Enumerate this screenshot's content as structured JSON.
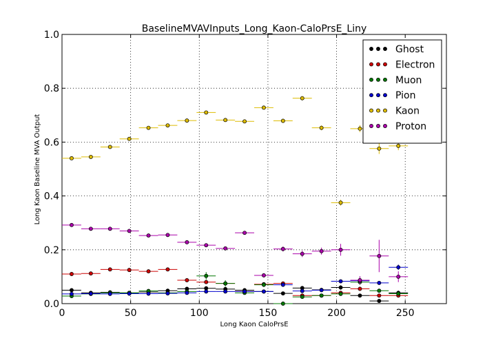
{
  "chart_data": {
    "type": "scatter",
    "title": "BaselineMVAVInputs_Long_Kaon-CaloPrsE_Liny",
    "xlabel": "Long Kaon CaloPrsE",
    "ylabel": "Long Kaon Baseline MVA Output",
    "xlim": [
      0,
      280
    ],
    "ylim": [
      0,
      1.0
    ],
    "x_ticks": [
      0,
      50,
      100,
      150,
      200,
      250
    ],
    "y_ticks": [
      0.0,
      0.2,
      0.4,
      0.6,
      0.8,
      1.0
    ],
    "x_tick_labels": [
      "0",
      "50",
      "100",
      "150",
      "200",
      "250"
    ],
    "y_tick_labels": [
      "0.0",
      "0.2",
      "0.4",
      "0.6",
      "0.8",
      "1.0"
    ],
    "grid": true,
    "legend_position": "top-right",
    "x_bin_half_width": 7,
    "series": [
      {
        "name": "Ghost",
        "color": "#000000",
        "x": [
          7,
          21,
          35,
          49,
          63,
          77,
          91,
          105,
          119,
          133,
          147,
          161,
          175,
          189,
          203,
          217,
          231,
          245
        ],
        "y": [
          0.05,
          0.04,
          0.042,
          0.04,
          0.043,
          0.048,
          0.055,
          0.057,
          0.054,
          0.05,
          0.045,
          0.038,
          0.058,
          0.051,
          0.06,
          0.03,
          0.01,
          0.04
        ],
        "yerr": [
          0.003,
          0.003,
          0.003,
          0.003,
          0.003,
          0.004,
          0.004,
          0.005,
          0.005,
          0.005,
          0.006,
          0.006,
          0.007,
          0.007,
          0.008,
          0.006,
          0.006,
          0.008
        ]
      },
      {
        "name": "Electron",
        "color": "#cc0000",
        "x": [
          7,
          21,
          35,
          49,
          63,
          77,
          91,
          105,
          119,
          133,
          147,
          161,
          175,
          189,
          203,
          217,
          231,
          245
        ],
        "y": [
          0.11,
          0.112,
          0.127,
          0.125,
          0.12,
          0.127,
          0.087,
          0.08,
          0.075,
          0.045,
          0.072,
          0.075,
          0.03,
          0.03,
          0.04,
          0.055,
          0.03,
          0.03
        ],
        "yerr": [
          0.003,
          0.003,
          0.003,
          0.003,
          0.003,
          0.004,
          0.004,
          0.005,
          0.005,
          0.005,
          0.006,
          0.006,
          0.006,
          0.006,
          0.007,
          0.007,
          0.006,
          0.006
        ]
      },
      {
        "name": "Muon",
        "color": "#007700",
        "x": [
          7,
          21,
          35,
          49,
          63,
          77,
          91,
          105,
          119,
          133,
          147,
          161,
          175,
          189,
          203,
          217,
          231,
          245
        ],
        "y": [
          0.028,
          0.036,
          0.04,
          0.04,
          0.047,
          0.04,
          0.045,
          0.103,
          0.075,
          0.04,
          0.07,
          0.0,
          0.025,
          0.03,
          0.036,
          0.08,
          0.048,
          0.037
        ],
        "yerr": [
          0.003,
          0.003,
          0.003,
          0.003,
          0.004,
          0.004,
          0.005,
          0.014,
          0.012,
          0.006,
          0.008,
          0.004,
          0.005,
          0.005,
          0.006,
          0.01,
          0.006,
          0.006
        ]
      },
      {
        "name": "Pion",
        "color": "#0000cc",
        "x": [
          7,
          21,
          35,
          49,
          63,
          77,
          91,
          105,
          119,
          133,
          147,
          161,
          175,
          189,
          203,
          217,
          231,
          245
        ],
        "y": [
          0.036,
          0.037,
          0.036,
          0.037,
          0.037,
          0.038,
          0.04,
          0.045,
          0.045,
          0.045,
          0.045,
          0.07,
          0.047,
          0.05,
          0.083,
          0.085,
          0.077,
          0.135
        ],
        "yerr": [
          0.002,
          0.002,
          0.002,
          0.002,
          0.002,
          0.002,
          0.003,
          0.003,
          0.003,
          0.003,
          0.004,
          0.004,
          0.004,
          0.004,
          0.005,
          0.006,
          0.007,
          0.01
        ]
      },
      {
        "name": "Kaon",
        "color": "#ddbb00",
        "x": [
          7,
          21,
          35,
          49,
          63,
          77,
          91,
          105,
          119,
          133,
          147,
          161,
          175,
          189,
          203,
          217,
          231,
          245
        ],
        "y": [
          0.54,
          0.545,
          0.582,
          0.612,
          0.653,
          0.662,
          0.68,
          0.71,
          0.682,
          0.677,
          0.728,
          0.679,
          0.763,
          0.653,
          0.375,
          0.65,
          0.576,
          0.586
        ],
        "yerr": [
          0.004,
          0.004,
          0.004,
          0.004,
          0.004,
          0.004,
          0.005,
          0.005,
          0.005,
          0.005,
          0.006,
          0.006,
          0.008,
          0.009,
          0.011,
          0.013,
          0.02,
          0.016
        ]
      },
      {
        "name": "Proton",
        "color": "#aa00aa",
        "x": [
          7,
          21,
          35,
          49,
          63,
          77,
          91,
          105,
          119,
          133,
          147,
          161,
          175,
          189,
          203,
          217,
          231,
          245
        ],
        "y": [
          0.292,
          0.278,
          0.278,
          0.27,
          0.253,
          0.255,
          0.228,
          0.217,
          0.205,
          0.263,
          0.105,
          0.203,
          0.185,
          0.195,
          0.2,
          0.087,
          0.177,
          0.1
        ],
        "yerr": [
          0.003,
          0.003,
          0.003,
          0.003,
          0.004,
          0.004,
          0.004,
          0.005,
          0.005,
          0.006,
          0.008,
          0.009,
          0.012,
          0.013,
          0.022,
          0.015,
          0.06,
          0.02
        ]
      }
    ]
  }
}
